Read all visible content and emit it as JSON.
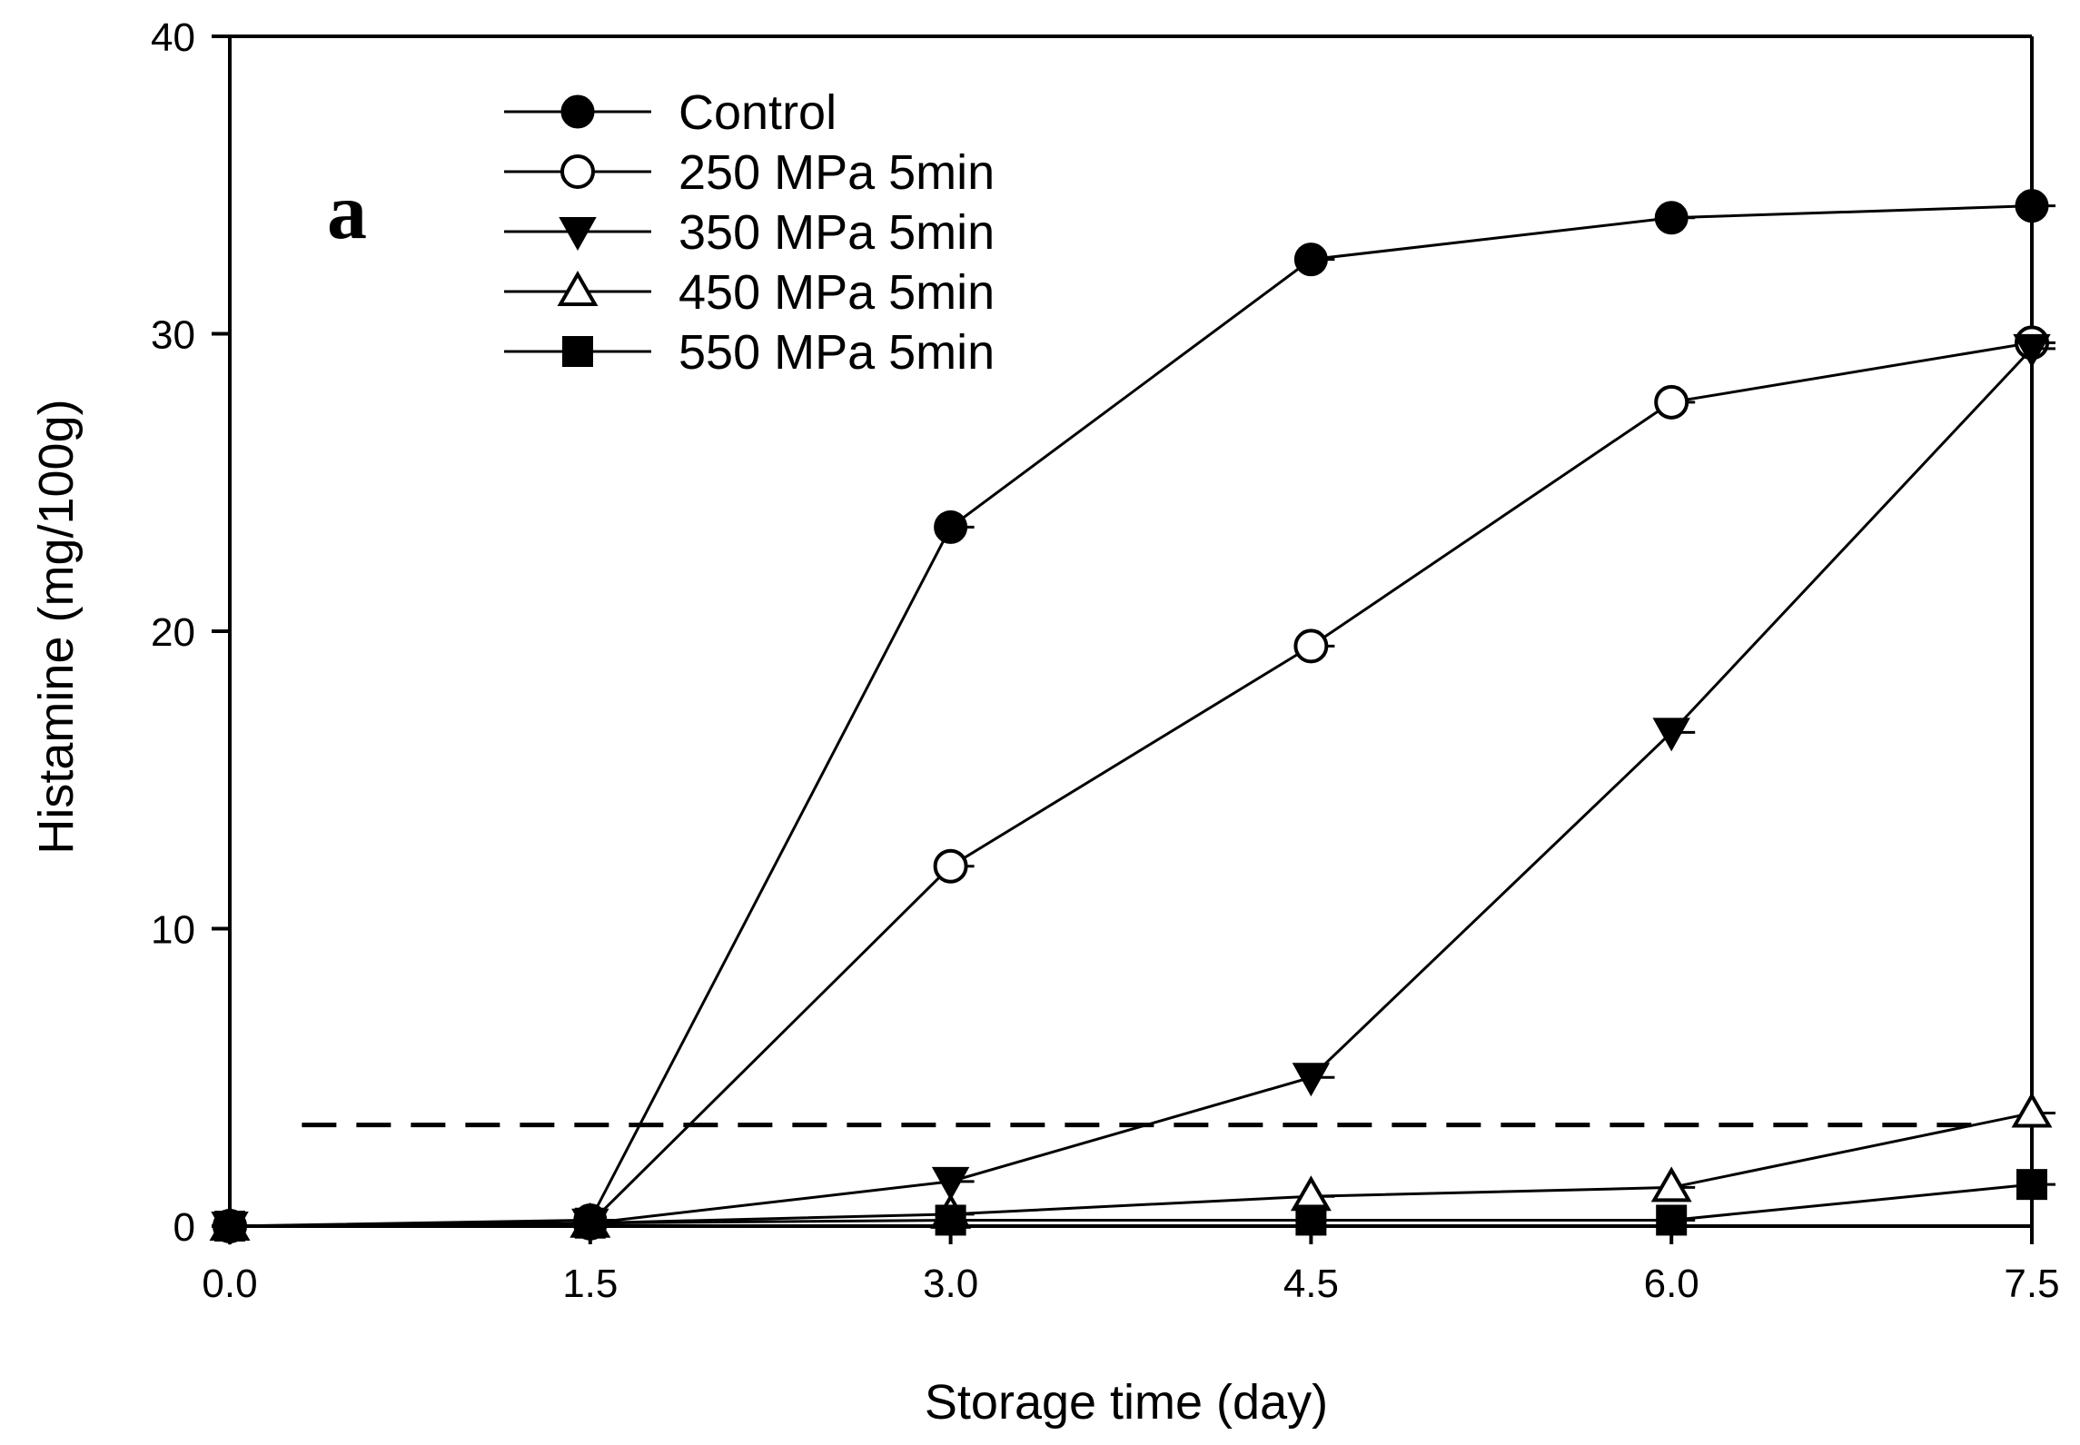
{
  "chart_data": {
    "type": "line",
    "panel_label": "a",
    "xlabel": "Storage time (day)",
    "ylabel": "Histamine  (mg/100g)",
    "x": [
      0.0,
      1.5,
      3.0,
      4.5,
      6.0,
      7.5
    ],
    "x_tick_labels": [
      "0.0",
      "1.5",
      "3.0",
      "4.5",
      "6.0",
      "7.5"
    ],
    "y_ticks": [
      0,
      10,
      20,
      30,
      40
    ],
    "y_tick_labels": [
      "0",
      "10",
      "20",
      "30",
      "40"
    ],
    "xlim": [
      0,
      7.5
    ],
    "ylim": [
      0,
      40
    ],
    "grid": false,
    "legend_position": "top-left",
    "series": [
      {
        "name": "Control",
        "marker": "filled-circle",
        "values": [
          0,
          0.2,
          23.5,
          32.5,
          33.9,
          34.3
        ]
      },
      {
        "name": "250 MPa 5min",
        "marker": "open-circle",
        "values": [
          0,
          0.1,
          12.1,
          19.5,
          27.7,
          29.7
        ]
      },
      {
        "name": "350 MPa 5min",
        "marker": "filled-triangle-down",
        "values": [
          0,
          0.1,
          1.5,
          5.0,
          16.6,
          29.5
        ]
      },
      {
        "name": "450 MPa 5min",
        "marker": "open-triangle-up",
        "values": [
          0,
          0.1,
          0.4,
          1.0,
          1.3,
          3.8
        ]
      },
      {
        "name": "550 MPa 5min",
        "marker": "filled-square",
        "values": [
          0,
          0.1,
          0.2,
          0.2,
          0.2,
          1.4
        ]
      }
    ],
    "reference_line": {
      "y": 3.4,
      "x_range": [
        0.3,
        7.3
      ],
      "style": "dashed"
    },
    "colors": {
      "line": "#000000",
      "background": "#ffffff"
    }
  }
}
